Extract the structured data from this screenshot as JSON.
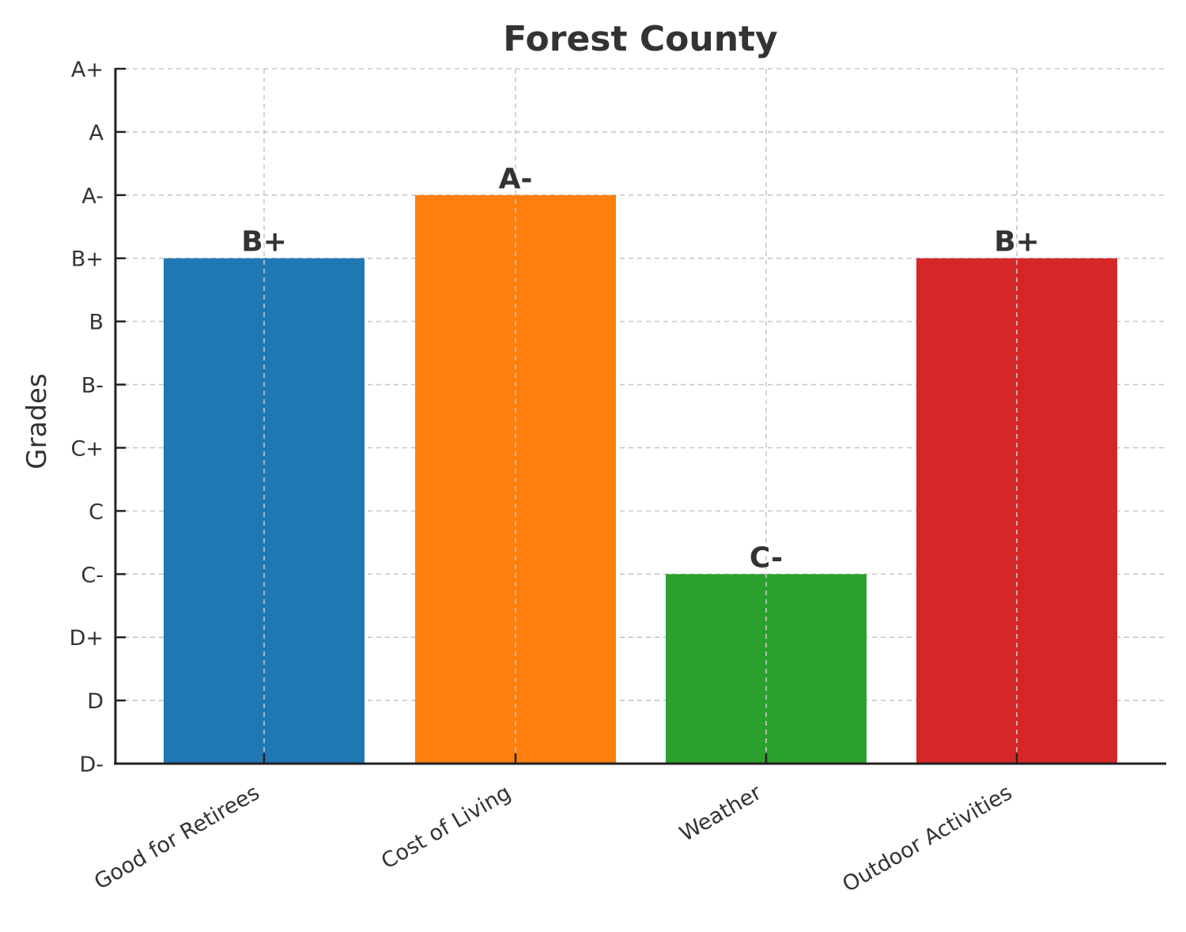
{
  "chart_data": {
    "type": "bar",
    "title": "Forest County",
    "xlabel": "",
    "ylabel": "Grades",
    "grade_scale": [
      "D-",
      "D",
      "D+",
      "C-",
      "C",
      "C+",
      "B-",
      "B",
      "B+",
      "A-",
      "A",
      "A+"
    ],
    "categories": [
      "Good for Retirees",
      "Cost of Living",
      "Weather",
      "Outdoor Activities"
    ],
    "values": [
      "B+",
      "A-",
      "C-",
      "B+"
    ],
    "data_labels": [
      "B+",
      "A-",
      "C-",
      "B+"
    ],
    "colors": [
      "#1f77b4",
      "#ff7f0e",
      "#2ca02c",
      "#d62728"
    ],
    "ylim": [
      "D-",
      "A+"
    ],
    "grid": true
  }
}
